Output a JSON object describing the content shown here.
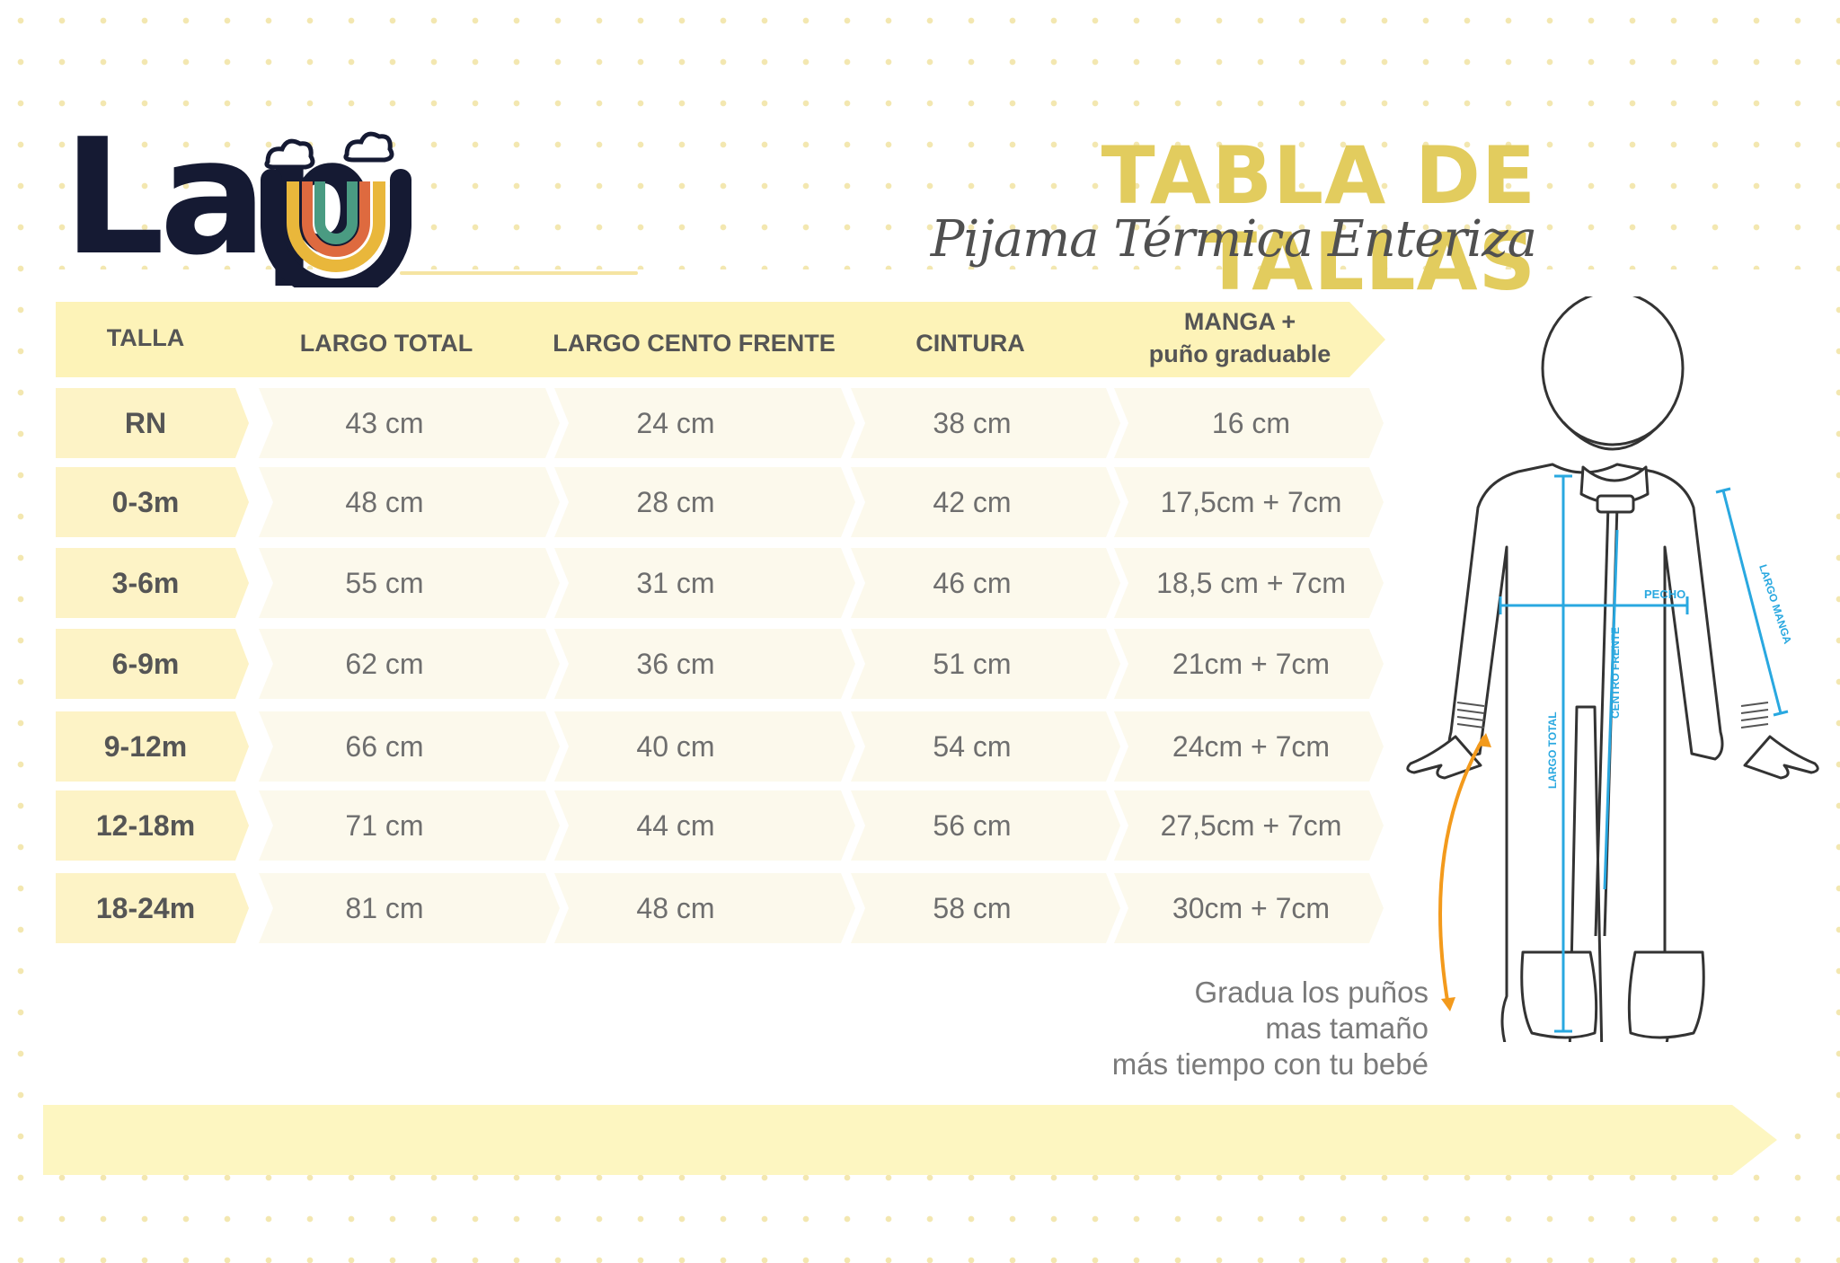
{
  "brand": {
    "name": "Lapu",
    "logo_text": "Lap",
    "accent": "#e2cc5e",
    "dark": "#151a33"
  },
  "title": "TABLA DE TALLAS",
  "subtitle": "Pijama Térmica Enteriza",
  "table": {
    "headers": {
      "talla": "TALLA",
      "largo_total": "LARGO TOTAL",
      "largo_centro": "LARGO CENTO FRENTE",
      "cintura": "CINTURA",
      "manga_line1": "MANGA +",
      "manga_line2": "puño graduable"
    },
    "rows": [
      {
        "talla": "RN",
        "largo_total": "43 cm",
        "largo_centro": "24 cm",
        "cintura": "38 cm",
        "manga": "16 cm"
      },
      {
        "talla": "0-3m",
        "largo_total": "48 cm",
        "largo_centro": "28 cm",
        "cintura": "42 cm",
        "manga": "17,5cm + 7cm"
      },
      {
        "talla": "3-6m",
        "largo_total": "55 cm",
        "largo_centro": "31 cm",
        "cintura": "46 cm",
        "manga": "18,5 cm + 7cm"
      },
      {
        "talla": "6-9m",
        "largo_total": "62 cm",
        "largo_centro": "36 cm",
        "cintura": "51 cm",
        "manga": "21cm + 7cm"
      },
      {
        "talla": "9-12m",
        "largo_total": "66 cm",
        "largo_centro": "40 cm",
        "cintura": "54 cm",
        "manga": "24cm + 7cm"
      },
      {
        "talla": "12-18m",
        "largo_total": "71 cm",
        "largo_centro": "44 cm",
        "cintura": "56 cm",
        "manga": "27,5cm + 7cm"
      },
      {
        "talla": "18-24m",
        "largo_total": "81 cm",
        "largo_centro": "48 cm",
        "cintura": "58 cm",
        "manga": "30cm + 7cm"
      }
    ]
  },
  "figure_labels": {
    "pecho": "PECHO",
    "largo_manga": "LARGO MANGA",
    "centro_frente": "CENTRO FRENTE",
    "largo_total": "LARGO TOTAL"
  },
  "note": {
    "line1": "Gradua los puños",
    "line2": "mas tamaño",
    "line3": "más tiempo con tu bebé"
  },
  "colors": {
    "header_yellow": "#fdf3b8",
    "row_cream": "#fcf9ec",
    "size_cell": "#fdf3c6",
    "measure_blue": "#29a8e0",
    "arrow_orange": "#f39a1c"
  }
}
